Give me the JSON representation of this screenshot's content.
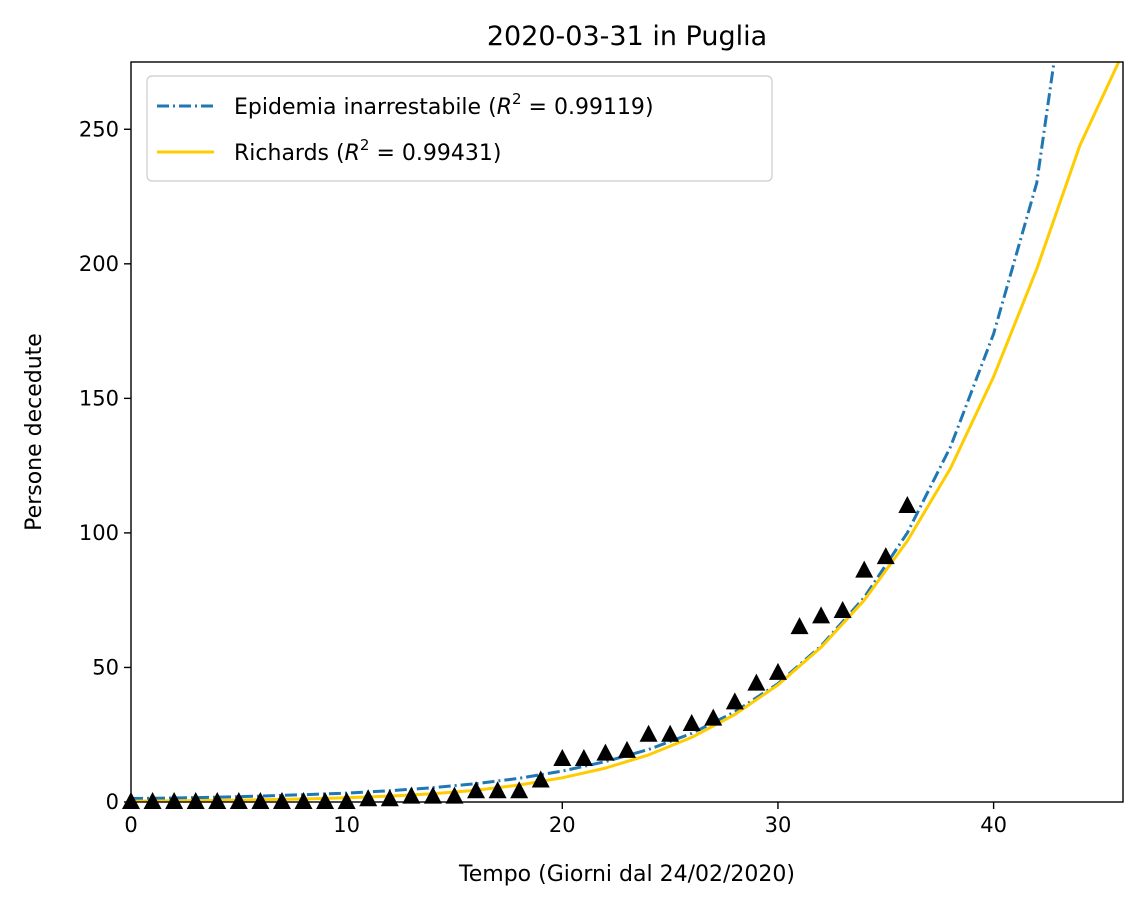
{
  "chart_data": {
    "type": "line",
    "title": "2020-03-31 in Puglia",
    "xlabel": "Tempo (Giorni dal 24/02/2020)",
    "ylabel": "Persone decedute",
    "xlim": [
      0,
      46
    ],
    "ylim": [
      0,
      275
    ],
    "xticks": [
      0,
      10,
      20,
      30,
      40
    ],
    "yticks": [
      0,
      50,
      100,
      150,
      200,
      250
    ],
    "grid": false,
    "legend_position": "top-left",
    "series": [
      {
        "name": "Epidemia inarrestabile",
        "r2_label": "R",
        "r2_exp": "2",
        "r2_value": "= 0.99119",
        "color": "#1f77b4",
        "style": "dashdot",
        "x": [
          0,
          2,
          4,
          6,
          8,
          10,
          12,
          14,
          16,
          18,
          20,
          22,
          24,
          26,
          28,
          30,
          32,
          34,
          36,
          38,
          40,
          42,
          42.8
        ],
        "y": [
          1.3,
          1.5,
          1.8,
          2.2,
          2.7,
          3.3,
          4.2,
          5.3,
          6.8,
          8.8,
          11.5,
          15,
          19.5,
          25.5,
          33.5,
          44,
          58,
          76,
          100,
          132,
          174,
          230,
          275
        ]
      },
      {
        "name": "Richards",
        "r2_label": "R",
        "r2_exp": "2",
        "r2_value": "= 0.99431",
        "color": "#ffcc00",
        "style": "solid",
        "x": [
          0,
          2,
          4,
          6,
          8,
          10,
          12,
          14,
          16,
          18,
          20,
          22,
          24,
          26,
          28,
          30,
          32,
          34,
          36,
          38,
          40,
          42,
          44,
          45.8
        ],
        "y": [
          0.3,
          0.4,
          0.6,
          0.8,
          1.1,
          1.6,
          2.2,
          3.1,
          4.4,
          6.3,
          9,
          12.6,
          17.5,
          24,
          32.5,
          43.5,
          57.5,
          75,
          97,
          124,
          158,
          198,
          244,
          275
        ]
      },
      {
        "name": "",
        "color": "#000000",
        "style": "triangle-markers",
        "x": [
          0,
          1,
          2,
          3,
          4,
          5,
          6,
          7,
          8,
          9,
          10,
          11,
          12,
          13,
          14,
          15,
          16,
          17,
          18,
          19,
          20,
          21,
          22,
          23,
          24,
          25,
          26,
          27,
          28,
          29,
          30,
          31,
          32,
          33,
          34,
          35,
          36
        ],
        "y": [
          0,
          0,
          0,
          0,
          0,
          0,
          0,
          0,
          0,
          0,
          0,
          1,
          1,
          2,
          2,
          2,
          4,
          4,
          4,
          8,
          16,
          16,
          18,
          19,
          25,
          25,
          29,
          31,
          37,
          44,
          48,
          65,
          69,
          71,
          86,
          91,
          110
        ]
      }
    ]
  }
}
